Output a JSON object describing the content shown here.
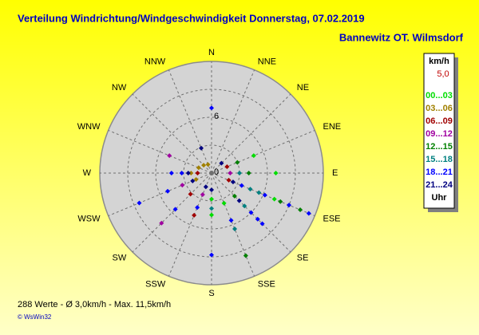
{
  "title": "Verteilung Windrichtung/Windgeschwindigkeit  Donnerstag, 07.02.2019",
  "subtitle": "Bannewitz OT. Wilmsdorf",
  "footer": "288 Werte   -   Ø 3,0km/h   -   Max. 11,5km/h",
  "copyright": "© WsWin32",
  "chart_data": {
    "type": "polar-scatter",
    "directions": [
      "N",
      "NNE",
      "NE",
      "ENE",
      "E",
      "ESE",
      "SE",
      "SSE",
      "S",
      "SSW",
      "SW",
      "WSW",
      "W",
      "WNW",
      "NW",
      "NNW"
    ],
    "rlim": [
      0,
      12
    ],
    "rings": [
      3,
      6,
      9
    ],
    "rlabels": [
      0,
      6
    ],
    "legend_unit": "km/h",
    "legend_value": "5,0",
    "legend_footer": "Uhr",
    "series": [
      {
        "name": "00...03",
        "color": "#00dd00",
        "dir": [
          90,
          112.5,
          180,
          67.5,
          180,
          157.5
        ],
        "speed": [
          6.9,
          7.3,
          4.5,
          4.9,
          2.8,
          3.5
        ]
      },
      {
        "name": "03...06",
        "color": "#a08000",
        "dir": [
          292.5,
          270,
          247.5,
          315,
          337.5
        ],
        "speed": [
          1.5,
          2.2,
          1.8,
          1.2,
          1.0
        ]
      },
      {
        "name": "06...09",
        "color": "#a00000",
        "dir": [
          202.5,
          225,
          270,
          67.5,
          112.5
        ],
        "speed": [
          4.9,
          3.2,
          1.5,
          1.8,
          2.0
        ]
      },
      {
        "name": "09...12",
        "color": "#a000a0",
        "dir": [
          292.5,
          225,
          247.5,
          90,
          202.5
        ],
        "speed": [
          4.9,
          7.6,
          3.4,
          2.0,
          2.5
        ]
      },
      {
        "name": "12...15",
        "color": "#008000",
        "dir": [
          157.5,
          112.5,
          112.5,
          135,
          90,
          67.5
        ],
        "speed": [
          9.6,
          10.3,
          8.0,
          3.5,
          4.0,
          3.0
        ]
      },
      {
        "name": "15...18",
        "color": "#008080",
        "dir": [
          112.5,
          112.5,
          135,
          90,
          157.5,
          180
        ],
        "speed": [
          4.5,
          5.5,
          5.0,
          3.0,
          6.5,
          3.8
        ]
      },
      {
        "name": "18...21",
        "color": "#0000ff",
        "dir": [
          0,
          112.5,
          112.5,
          112.5,
          135,
          135,
          135,
          180,
          247.5,
          247.5,
          270,
          270,
          157.5,
          112.5,
          202.5,
          225
        ],
        "speed": [
          7.0,
          11.3,
          6.2,
          3.5,
          6.0,
          7.0,
          7.7,
          8.8,
          8.4,
          5.1,
          4.3,
          3.2,
          5.5,
          9.0,
          4.0,
          5.5
        ]
      },
      {
        "name": "21...24",
        "color": "#000080",
        "dir": [
          337.5,
          135,
          112.5,
          247.5,
          270,
          45,
          180,
          202.5
        ],
        "speed": [
          2.9,
          4.2,
          2.5,
          2.2,
          2.5,
          1.5,
          1.8,
          1.6
        ]
      }
    ]
  }
}
